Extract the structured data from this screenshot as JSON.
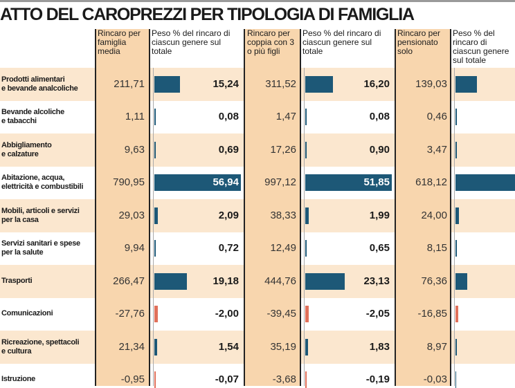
{
  "chart_data": {
    "type": "table",
    "title": "ATTO DEL CAROPREZZI PER TIPOLOGIA DI FAMIGLIA",
    "columns": [
      "Rincaro per famiglia media",
      "Peso % del rincaro di ciascun genere sul totale",
      "Rincaro per coppia con 3 o più figli",
      "Peso % del rincaro di ciascun genere sul totale",
      "Rincaro per pensionato solo",
      "Peso % del rincaro di ciascun genere sul totale"
    ],
    "rows": [
      {
        "label": "Prodotti alimentari\ne bevande analcoliche",
        "media": "211,71",
        "peso_media": "15,24",
        "coppia": "311,52",
        "peso_coppia": "16,20",
        "pensionato": "139,03",
        "bars": [
          15.24,
          16.2,
          12.5
        ]
      },
      {
        "label": "Bevande alcoliche\ne tabacchi",
        "media": "1,11",
        "peso_media": "0,08",
        "coppia": "1,47",
        "peso_coppia": "0,08",
        "pensionato": "0,46",
        "bars": [
          0.08,
          0.08,
          0.04
        ]
      },
      {
        "label": "Abbigliamento\ne calzature",
        "media": "9,63",
        "peso_media": "0,69",
        "coppia": "17,26",
        "peso_coppia": "0,90",
        "pensionato": "3,47",
        "bars": [
          0.69,
          0.9,
          0.3
        ]
      },
      {
        "label": "Abitazione, acqua,\nelettricità e combustibili",
        "media": "790,95",
        "peso_media": "56,94",
        "coppia": "997,12",
        "peso_coppia": "51,85",
        "pensionato": "618,12",
        "bars": [
          56.94,
          51.85,
          55.7
        ]
      },
      {
        "label": "Mobili, articoli e servizi\nper la casa",
        "media": "29,03",
        "peso_media": "2,09",
        "coppia": "38,33",
        "peso_coppia": "1,99",
        "pensionato": "24,00",
        "bars": [
          2.09,
          1.99,
          2.2
        ]
      },
      {
        "label": "Servizi sanitari e spese\nper la salute",
        "media": "9,94",
        "peso_media": "0,72",
        "coppia": "12,49",
        "peso_coppia": "0,65",
        "pensionato": "8,15",
        "bars": [
          0.72,
          0.65,
          0.7
        ]
      },
      {
        "label": "Trasporti",
        "media": "266,47",
        "peso_media": "19,18",
        "coppia": "444,76",
        "peso_coppia": "23,13",
        "pensionato": "76,36",
        "bars": [
          19.18,
          23.13,
          6.9
        ]
      },
      {
        "label": "Comunicazioni",
        "media": "-27,76",
        "peso_media": "-2,00",
        "coppia": "-39,45",
        "peso_coppia": "-2,05",
        "pensionato": "-16,85",
        "bars": [
          -2.0,
          -2.05,
          -1.5
        ]
      },
      {
        "label": "Ricreazione, spettacoli\ne cultura",
        "media": "21,34",
        "peso_media": "1,54",
        "coppia": "35,19",
        "peso_coppia": "1,83",
        "pensionato": "8,97",
        "bars": [
          1.54,
          1.83,
          0.8
        ]
      },
      {
        "label": "Istruzione",
        "media": "-0,95",
        "peso_media": "-0,07",
        "coppia": "-3,68",
        "peso_coppia": "-0,19",
        "pensionato": "-0,03",
        "bars": [
          -0.07,
          -0.19,
          0.0
        ]
      }
    ],
    "colors": {
      "positive_bar": "#1d5877",
      "negative_bar": "#e0705a",
      "row_band": "#fbe7cf",
      "rincaro_column": "#f8d6ae"
    }
  }
}
